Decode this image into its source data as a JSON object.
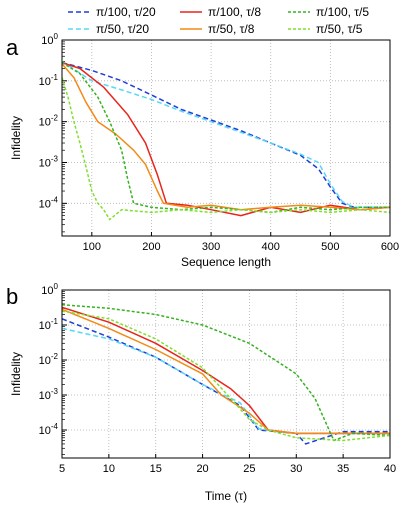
{
  "legend": [
    {
      "key": "a",
      "label": "π/100, τ/20",
      "color": "#1f3ed6",
      "dash": "5,3"
    },
    {
      "key": "b",
      "label": "π/100, τ/8",
      "color": "#e8241c",
      "dash": ""
    },
    {
      "key": "c",
      "label": "π/100, τ/5",
      "color": "#34b31f",
      "dash": "3,2"
    },
    {
      "key": "d",
      "label": "π/50, τ/20",
      "color": "#56d8f5",
      "dash": "5,3"
    },
    {
      "key": "e",
      "label": "π/50, τ/8",
      "color": "#f28a17",
      "dash": ""
    },
    {
      "key": "f",
      "label": "π/50, τ/5",
      "color": "#7fe02a",
      "dash": "3,2"
    }
  ],
  "chart_data": [
    {
      "panel_label": "a",
      "type": "line",
      "xlabel": "Sequence length",
      "ylabel": "Infidelity",
      "xlim": [
        50,
        600
      ],
      "ylim_log10": [
        -4.8,
        0
      ],
      "yscale": "log",
      "grid": true,
      "x_ticks": [
        "100",
        "200",
        "300",
        "400",
        "500",
        "600"
      ],
      "y_ticks": [
        "10^0",
        "10^-1",
        "10^-2",
        "10^-3",
        "10^-4"
      ],
      "series": [
        {
          "key": "a",
          "x": [
            50,
            100,
            150,
            200,
            250,
            300,
            350,
            400,
            450,
            480,
            500,
            520,
            540,
            600
          ],
          "y": [
            0.28,
            0.18,
            0.1,
            0.045,
            0.02,
            0.011,
            0.006,
            0.003,
            0.0015,
            0.0007,
            0.00025,
            0.0001,
            8e-05,
            8e-05
          ]
        },
        {
          "key": "d",
          "x": [
            50,
            100,
            150,
            200,
            250,
            300,
            350,
            400,
            450,
            480,
            500,
            520,
            540,
            600
          ],
          "y": [
            0.3,
            0.1,
            0.06,
            0.035,
            0.018,
            0.01,
            0.0055,
            0.003,
            0.0016,
            0.001,
            0.0003,
            0.00011,
            8e-05,
            8e-05
          ]
        },
        {
          "key": "b",
          "x": [
            50,
            80,
            120,
            160,
            190,
            210,
            225,
            260,
            300,
            350,
            400,
            450,
            500,
            550,
            600
          ],
          "y": [
            0.28,
            0.2,
            0.07,
            0.015,
            0.003,
            0.0005,
            0.0001,
            9e-05,
            7e-05,
            5e-05,
            8e-05,
            6e-05,
            9e-05,
            7e-05,
            8e-05
          ]
        },
        {
          "key": "e",
          "x": [
            50,
            70,
            90,
            110,
            140,
            170,
            190,
            210,
            220,
            260,
            300,
            350,
            400,
            450,
            500,
            550,
            600
          ],
          "y": [
            0.26,
            0.12,
            0.03,
            0.01,
            0.005,
            0.002,
            0.0009,
            0.0002,
            0.0001,
            8e-05,
            9e-05,
            7e-05,
            8e-05,
            9e-05,
            8e-05,
            7e-05,
            8e-05
          ]
        },
        {
          "key": "c",
          "x": [
            50,
            80,
            110,
            130,
            150,
            160,
            170,
            200,
            250,
            300,
            350,
            400,
            450,
            500,
            550,
            600
          ],
          "y": [
            0.28,
            0.15,
            0.04,
            0.01,
            0.002,
            0.0004,
            0.0001,
            8e-05,
            7e-05,
            8e-05,
            7e-05,
            6e-05,
            8e-05,
            7e-05,
            8e-05,
            8e-05
          ]
        },
        {
          "key": "f",
          "x": [
            50,
            60,
            70,
            80,
            90,
            100,
            110,
            120,
            130,
            150,
            200,
            250,
            300,
            350,
            400,
            450,
            500,
            550,
            600
          ],
          "y": [
            0.12,
            0.04,
            0.01,
            0.003,
            0.0008,
            0.0002,
            0.0001,
            7e-05,
            4e-05,
            7e-05,
            6e-05,
            7e-05,
            6e-05,
            7e-05,
            6e-05,
            7e-05,
            6e-05,
            7e-05,
            6e-05
          ]
        }
      ]
    },
    {
      "panel_label": "b",
      "type": "line",
      "xlabel": "Time (τ)",
      "ylabel": "Infidelity",
      "xlim": [
        5,
        40
      ],
      "ylim_log10": [
        -4.8,
        0
      ],
      "yscale": "log",
      "grid": true,
      "x_ticks": [
        "5",
        "10",
        "15",
        "20",
        "25",
        "30",
        "35",
        "40"
      ],
      "y_ticks": [
        "10^0",
        "10^-1",
        "10^-2",
        "10^-3",
        "10^-4"
      ],
      "series": [
        {
          "key": "a",
          "x": [
            5,
            10,
            15,
            20,
            24,
            26,
            28,
            30,
            31,
            35,
            40
          ],
          "y": [
            0.15,
            0.045,
            0.012,
            0.002,
            0.0005,
            0.0001,
            9e-05,
            8e-05,
            4e-05,
            9e-05,
            9e-05
          ]
        },
        {
          "key": "d",
          "x": [
            5,
            10,
            15,
            20,
            24,
            26,
            28,
            30,
            35,
            40
          ],
          "y": [
            0.08,
            0.04,
            0.012,
            0.002,
            0.0006,
            0.00011,
            9e-05,
            8e-05,
            8e-05,
            8e-05
          ]
        },
        {
          "key": "b",
          "x": [
            5,
            10,
            15,
            20,
            23,
            25,
            27,
            30,
            35,
            40
          ],
          "y": [
            0.32,
            0.12,
            0.03,
            0.005,
            0.0015,
            0.0005,
            0.0001,
            8e-05,
            8e-05,
            8e-05
          ]
        },
        {
          "key": "e",
          "x": [
            5,
            10,
            15,
            20,
            22,
            25,
            27,
            30,
            35,
            40
          ],
          "y": [
            0.28,
            0.08,
            0.02,
            0.004,
            0.001,
            0.0003,
            0.0001,
            8e-05,
            8e-05,
            8e-05
          ]
        },
        {
          "key": "c",
          "x": [
            5,
            10,
            15,
            20,
            25,
            30,
            32,
            33,
            34,
            36,
            40
          ],
          "y": [
            0.38,
            0.3,
            0.2,
            0.1,
            0.03,
            0.004,
            0.0008,
            0.0002,
            5e-05,
            8e-05,
            7e-05
          ]
        },
        {
          "key": "f",
          "x": [
            5,
            10,
            15,
            20,
            23,
            25,
            27,
            30,
            35,
            40
          ],
          "y": [
            0.25,
            0.15,
            0.04,
            0.006,
            0.0008,
            0.0002,
            0.0001,
            6e-05,
            5e-05,
            7e-05
          ]
        }
      ]
    }
  ]
}
